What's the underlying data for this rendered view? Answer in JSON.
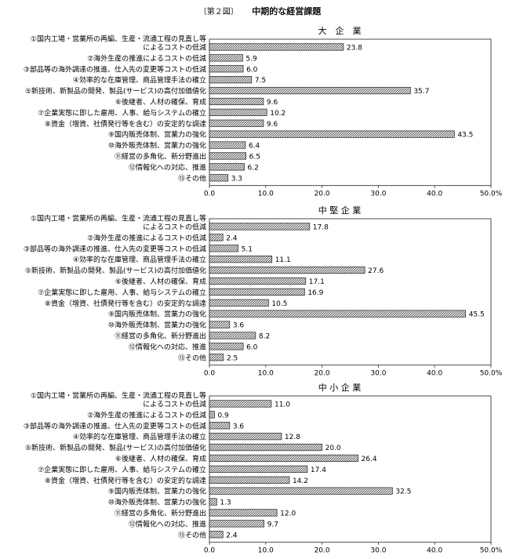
{
  "figure": {
    "number": "〔第２図〕",
    "title": "中期的な経営課題"
  },
  "categories": [
    [
      "①国内工場・営業所の再編、生産・流通工程の見直し等",
      "によるコストの低減"
    ],
    [
      "②海外生産の推進によるコストの低減"
    ],
    [
      "③部品等の海外調達の推進、仕入先の変更等コストの低減"
    ],
    [
      "④効率的な在庫管理、商品管理手法の確立"
    ],
    [
      "⑤新技術、新製品の開発、製品(サービス)の高付加価値化"
    ],
    [
      "⑥後継者、人材の確保、育成"
    ],
    [
      "⑦企業実態に即した雇用、人事、給与システムの確立"
    ],
    [
      "⑧資金（増資、社債発行等を含む）の安定的な調達"
    ],
    [
      "⑨国内販売体制、営業力の強化"
    ],
    [
      "⑩海外販売体制、営業力の強化"
    ],
    [
      "⑪経営の多角化、新分野進出"
    ],
    [
      "⑫情報化への対応、推進"
    ],
    [
      "⑬その他"
    ]
  ],
  "x_ticks": [
    "0.0",
    "10.0",
    "20.0",
    "30.0",
    "40.0",
    "50.0%"
  ],
  "chart_data": [
    {
      "type": "bar",
      "orientation": "horizontal",
      "title": "大　企　業",
      "xlim": [
        0,
        50
      ],
      "unit": "%",
      "values": [
        23.8,
        5.9,
        6.0,
        7.5,
        35.7,
        9.6,
        10.2,
        9.6,
        43.5,
        6.4,
        6.5,
        6.2,
        3.3
      ],
      "labels": [
        "23.8",
        "5.9",
        "6.0",
        "7.5",
        "35.7",
        "9.6",
        "10.2",
        "9.6",
        "43.5",
        "6.4",
        "6.5",
        "6.2",
        "3.3"
      ]
    },
    {
      "type": "bar",
      "orientation": "horizontal",
      "title": "中 堅 企 業",
      "xlim": [
        0,
        50
      ],
      "unit": "%",
      "values": [
        17.8,
        2.4,
        5.1,
        11.1,
        27.6,
        17.1,
        16.9,
        10.5,
        45.5,
        3.6,
        8.2,
        6.0,
        2.5
      ],
      "labels": [
        "17.8",
        "2.4",
        "5.1",
        "11.1",
        "27.6",
        "17.1",
        "16.9",
        "10.5",
        "45.5",
        "3.6",
        "8.2",
        "6.0",
        "2.5"
      ]
    },
    {
      "type": "bar",
      "orientation": "horizontal",
      "title": "中 小 企 業",
      "xlim": [
        0,
        50
      ],
      "unit": "%",
      "values": [
        11.0,
        0.9,
        3.6,
        12.8,
        20.0,
        26.4,
        17.4,
        14.2,
        32.5,
        1.3,
        12.0,
        9.7,
        2.4
      ],
      "labels": [
        "11.0",
        "0.9",
        "3.6",
        "12.8",
        "20.0",
        "26.4",
        "17.4",
        "14.2",
        "32.5",
        "1.3",
        "12.0",
        "9.7",
        "2.4"
      ]
    }
  ]
}
